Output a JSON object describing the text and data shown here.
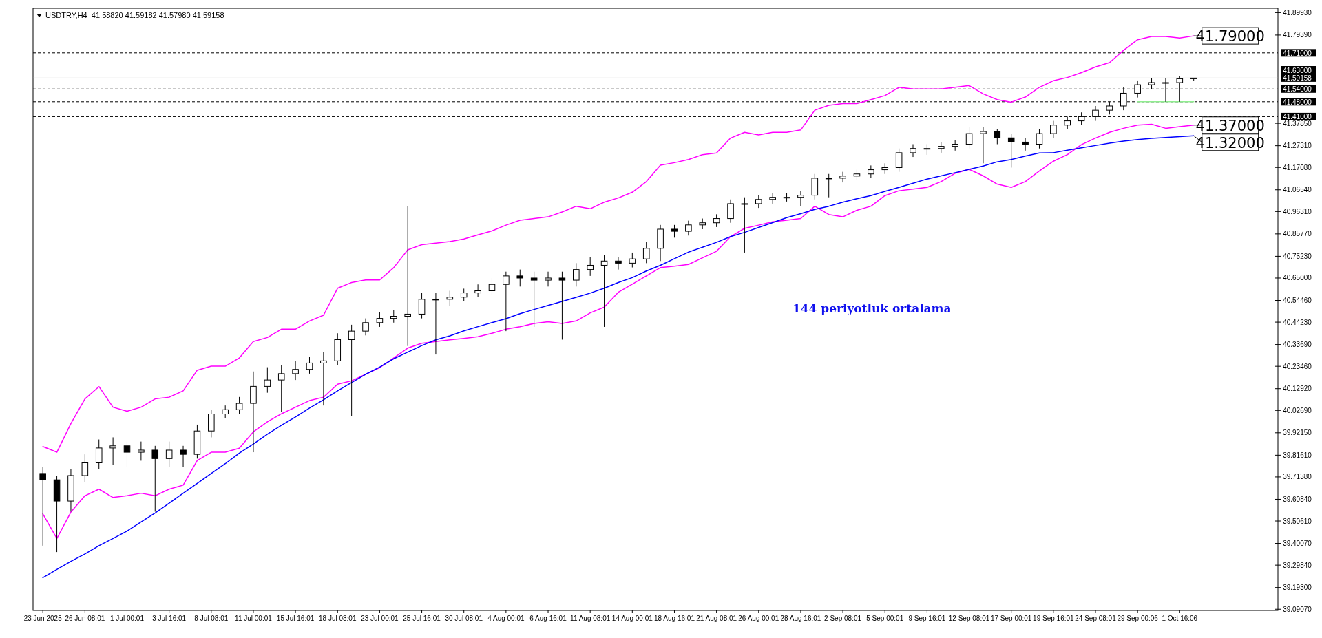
{
  "chart_data": {
    "type": "candlestick",
    "title": "USDTRY,H4  41.58820 41.59182 41.57980 41.59158",
    "categories": [
      "23 Jun 2025",
      null,
      null,
      "26 Jun 08:01",
      null,
      null,
      "1 Jul 00:01",
      null,
      null,
      "3 Jul 16:01",
      null,
      null,
      "8 Jul 08:01",
      null,
      null,
      "11 Jul 00:01",
      null,
      null,
      "15 Jul 16:01",
      null,
      null,
      "18 Jul 08:01",
      null,
      null,
      "23 Jul 00:01",
      null,
      null,
      "25 Jul 16:01",
      null,
      null,
      "30 Jul 08:01",
      null,
      null,
      "4 Aug 00:01",
      null,
      null,
      "6 Aug 16:01",
      null,
      null,
      "11 Aug 08:01",
      null,
      null,
      "14 Aug 00:01",
      null,
      null,
      "18 Aug 16:01",
      null,
      null,
      "21 Aug 08:01",
      null,
      null,
      "26 Aug 00:01",
      null,
      null,
      "28 Aug 16:01",
      null,
      null,
      "2 Sep 08:01",
      null,
      null,
      "5 Sep 00:01",
      null,
      null,
      "9 Sep 16:01",
      null,
      null,
      "12 Sep 08:01",
      null,
      null,
      "17 Sep 00:01",
      null,
      null,
      "19 Sep 16:01",
      null,
      null,
      "24 Sep 08:01",
      null,
      null,
      "29 Sep 00:06",
      null,
      null,
      "1 Oct 16:06",
      null
    ],
    "ohlc": [
      [
        39.73,
        39.76,
        39.39,
        39.7
      ],
      [
        39.7,
        39.72,
        39.36,
        39.6
      ],
      [
        39.6,
        39.75,
        39.55,
        39.72
      ],
      [
        39.72,
        39.82,
        39.69,
        39.78
      ],
      [
        39.78,
        39.89,
        39.75,
        39.85
      ],
      [
        39.85,
        39.9,
        39.77,
        39.86
      ],
      [
        39.86,
        39.88,
        39.76,
        39.83
      ],
      [
        39.83,
        39.88,
        39.79,
        39.84
      ],
      [
        39.84,
        39.86,
        39.55,
        39.8
      ],
      [
        39.8,
        39.88,
        39.76,
        39.84
      ],
      [
        39.84,
        39.86,
        39.76,
        39.82
      ],
      [
        39.82,
        39.96,
        39.8,
        39.93
      ],
      [
        39.93,
        40.03,
        39.9,
        40.01
      ],
      [
        40.01,
        40.05,
        39.99,
        40.03
      ],
      [
        40.03,
        40.09,
        40.01,
        40.06
      ],
      [
        40.06,
        40.21,
        39.83,
        40.14
      ],
      [
        40.14,
        40.23,
        40.11,
        40.17
      ],
      [
        40.17,
        40.24,
        40.02,
        40.2
      ],
      [
        40.2,
        40.26,
        40.17,
        40.22
      ],
      [
        40.22,
        40.28,
        40.2,
        40.25
      ],
      [
        40.25,
        40.3,
        40.05,
        40.26
      ],
      [
        40.26,
        40.39,
        40.24,
        40.36
      ],
      [
        40.36,
        40.43,
        40.0,
        40.4
      ],
      [
        40.4,
        40.46,
        40.38,
        40.44
      ],
      [
        40.44,
        40.49,
        40.42,
        40.46
      ],
      [
        40.46,
        40.5,
        40.44,
        40.47
      ],
      [
        40.47,
        40.99,
        40.33,
        40.48
      ],
      [
        40.48,
        40.58,
        40.46,
        40.55
      ],
      [
        40.55,
        40.58,
        40.29,
        40.55
      ],
      [
        40.55,
        40.59,
        40.52,
        40.56
      ],
      [
        40.56,
        40.6,
        40.54,
        40.58
      ],
      [
        40.58,
        40.62,
        40.56,
        40.59
      ],
      [
        40.59,
        40.65,
        40.57,
        40.62
      ],
      [
        40.62,
        40.68,
        40.4,
        40.66
      ],
      [
        40.66,
        40.69,
        40.61,
        40.65
      ],
      [
        40.65,
        40.68,
        40.42,
        40.64
      ],
      [
        40.64,
        40.68,
        40.61,
        40.65
      ],
      [
        40.65,
        40.68,
        40.36,
        40.64
      ],
      [
        40.64,
        40.72,
        40.61,
        40.69
      ],
      [
        40.69,
        40.75,
        40.66,
        40.71
      ],
      [
        40.71,
        40.76,
        40.42,
        40.73
      ],
      [
        40.73,
        40.75,
        40.69,
        40.72
      ],
      [
        40.72,
        40.77,
        40.7,
        40.74
      ],
      [
        40.74,
        40.82,
        40.72,
        40.79
      ],
      [
        40.79,
        40.9,
        40.73,
        40.88
      ],
      [
        40.88,
        40.9,
        40.84,
        40.87
      ],
      [
        40.87,
        40.92,
        40.85,
        40.9
      ],
      [
        40.9,
        40.93,
        40.88,
        40.91
      ],
      [
        40.91,
        40.95,
        40.89,
        40.93
      ],
      [
        40.93,
        41.02,
        40.91,
        41.0
      ],
      [
        41.0,
        41.03,
        40.77,
        41.0
      ],
      [
        41.0,
        41.04,
        40.98,
        41.02
      ],
      [
        41.02,
        41.05,
        41.0,
        41.03
      ],
      [
        41.03,
        41.05,
        41.01,
        41.03
      ],
      [
        41.03,
        41.06,
        40.99,
        41.04
      ],
      [
        41.04,
        41.14,
        41.02,
        41.12
      ],
      [
        41.12,
        41.14,
        41.03,
        41.12
      ],
      [
        41.12,
        41.15,
        41.1,
        41.13
      ],
      [
        41.13,
        41.16,
        41.11,
        41.14
      ],
      [
        41.14,
        41.18,
        41.12,
        41.16
      ],
      [
        41.16,
        41.19,
        41.14,
        41.17
      ],
      [
        41.17,
        41.26,
        41.15,
        41.24
      ],
      [
        41.24,
        41.28,
        41.22,
        41.26
      ],
      [
        41.26,
        41.28,
        41.23,
        41.26
      ],
      [
        41.26,
        41.29,
        41.24,
        41.27
      ],
      [
        41.27,
        41.3,
        41.25,
        41.28
      ],
      [
        41.28,
        41.36,
        41.26,
        41.33
      ],
      [
        41.33,
        41.36,
        41.19,
        41.34
      ],
      [
        41.34,
        41.35,
        41.28,
        41.31
      ],
      [
        41.31,
        41.33,
        41.17,
        41.29
      ],
      [
        41.29,
        41.31,
        41.25,
        41.28
      ],
      [
        41.28,
        41.35,
        41.26,
        41.33
      ],
      [
        41.33,
        41.39,
        41.31,
        41.37
      ],
      [
        41.37,
        41.41,
        41.35,
        41.39
      ],
      [
        41.39,
        41.43,
        41.37,
        41.41
      ],
      [
        41.41,
        41.46,
        41.39,
        41.44
      ],
      [
        41.44,
        41.48,
        41.42,
        41.46
      ],
      [
        41.46,
        41.55,
        41.44,
        41.52
      ],
      [
        41.52,
        41.58,
        41.5,
        41.56
      ],
      [
        41.56,
        41.59,
        41.54,
        41.57
      ],
      [
        41.57,
        41.59,
        41.48,
        41.57
      ],
      [
        41.57,
        41.6,
        41.48,
        41.5882
      ],
      [
        41.5882,
        41.59182,
        41.5798,
        41.59158
      ]
    ],
    "series": [
      {
        "type": "line",
        "color": "#ff00ff",
        "values": [
          39.857,
          39.83,
          39.965,
          40.081,
          40.139,
          40.042,
          40.023,
          40.042,
          40.081,
          40.089,
          40.119,
          40.216,
          40.235,
          40.235,
          40.274,
          40.351,
          40.37,
          40.409,
          40.409,
          40.448,
          40.475,
          40.602,
          40.629,
          40.641,
          40.641,
          40.699,
          40.783,
          40.807,
          40.814,
          40.822,
          40.834,
          40.853,
          40.872,
          40.899,
          40.922,
          40.93,
          40.938,
          40.961,
          40.988,
          40.976,
          41.007,
          41.027,
          41.054,
          41.104,
          41.181,
          41.193,
          41.208,
          41.231,
          41.239,
          41.309,
          41.336,
          41.324,
          41.336,
          41.336,
          41.347,
          41.44,
          41.463,
          41.471,
          41.471,
          41.49,
          41.509,
          41.548,
          41.54,
          41.54,
          41.54,
          41.548,
          41.556,
          41.517,
          41.49,
          41.478,
          41.502,
          41.548,
          41.579,
          41.594,
          41.617,
          41.644,
          41.664,
          41.722,
          41.772,
          41.787,
          41.787,
          41.78,
          41.79
        ]
      },
      {
        "type": "line",
        "color": "#ff00ff",
        "values": [
          39.54,
          39.424,
          39.548,
          39.625,
          39.656,
          39.617,
          39.625,
          39.637,
          39.625,
          39.656,
          39.675,
          39.791,
          39.83,
          39.83,
          39.849,
          39.926,
          39.973,
          40.011,
          40.042,
          40.073,
          40.089,
          40.15,
          40.166,
          40.197,
          40.228,
          40.274,
          40.32,
          40.343,
          40.351,
          40.359,
          40.366,
          40.374,
          40.39,
          40.409,
          40.421,
          40.436,
          40.444,
          40.436,
          40.448,
          40.486,
          40.513,
          40.583,
          40.621,
          40.66,
          40.699,
          40.706,
          40.714,
          40.745,
          40.776,
          40.845,
          40.884,
          40.899,
          40.915,
          40.922,
          40.93,
          40.988,
          40.949,
          40.938,
          40.969,
          40.988,
          41.038,
          41.061,
          41.069,
          41.077,
          41.104,
          41.143,
          41.162,
          41.131,
          41.092,
          41.077,
          41.104,
          41.154,
          41.2,
          41.231,
          41.278,
          41.309,
          41.336,
          41.355,
          41.37,
          41.374,
          41.355,
          41.363,
          41.37
        ]
      },
      {
        "type": "line",
        "color": "#0000ff",
        "values": [
          39.239,
          39.278,
          39.316,
          39.351,
          39.39,
          39.424,
          39.459,
          39.502,
          39.544,
          39.59,
          39.637,
          39.683,
          39.73,
          39.776,
          39.826,
          39.869,
          39.915,
          39.957,
          39.996,
          40.038,
          40.077,
          40.119,
          40.158,
          40.197,
          40.231,
          40.27,
          40.301,
          40.332,
          40.359,
          40.378,
          40.401,
          40.421,
          40.44,
          40.459,
          40.482,
          40.502,
          40.521,
          40.54,
          40.559,
          40.579,
          40.602,
          40.629,
          40.652,
          40.683,
          40.71,
          40.741,
          40.772,
          40.795,
          40.818,
          40.845,
          40.865,
          40.888,
          40.911,
          40.934,
          40.953,
          40.973,
          40.988,
          41.007,
          41.023,
          41.038,
          41.058,
          41.077,
          41.096,
          41.116,
          41.131,
          41.146,
          41.162,
          41.177,
          41.197,
          41.208,
          41.224,
          41.239,
          41.24,
          41.252,
          41.263,
          41.274,
          41.285,
          41.295,
          41.302,
          41.308,
          41.312,
          41.316,
          41.32
        ]
      },
      {
        "type": "line",
        "color": "#90ee90",
        "values": [
          null,
          null,
          null,
          null,
          null,
          null,
          null,
          null,
          null,
          null,
          null,
          null,
          null,
          null,
          null,
          null,
          null,
          null,
          null,
          null,
          null,
          null,
          null,
          null,
          null,
          null,
          null,
          null,
          null,
          null,
          null,
          null,
          null,
          null,
          null,
          null,
          null,
          null,
          null,
          null,
          null,
          null,
          null,
          null,
          null,
          null,
          null,
          null,
          null,
          null,
          null,
          null,
          null,
          null,
          null,
          null,
          null,
          null,
          null,
          null,
          null,
          null,
          null,
          null,
          null,
          null,
          null,
          null,
          null,
          null,
          null,
          null,
          null,
          null,
          null,
          null,
          null,
          null,
          41.48,
          41.48,
          41.48,
          41.48,
          41.48
        ]
      }
    ],
    "ylim": [
      39.085,
      41.92
    ],
    "yticks": [
      {
        "value": 41.8993,
        "label": "41.89930"
      },
      {
        "value": 41.7939,
        "label": "41.79390"
      },
      {
        "value": 41.3785,
        "label": "41.37850"
      },
      {
        "value": 41.2731,
        "label": "41.27310"
      },
      {
        "value": 41.1708,
        "label": "41.17080"
      },
      {
        "value": 41.0654,
        "label": "41.06540"
      },
      {
        "value": 40.9631,
        "label": "40.96310"
      },
      {
        "value": 40.8577,
        "label": "40.85770"
      },
      {
        "value": 40.7523,
        "label": "40.75230"
      },
      {
        "value": 40.65,
        "label": "40.65000"
      },
      {
        "value": 40.5446,
        "label": "40.54460"
      },
      {
        "value": 40.4423,
        "label": "40.44230"
      },
      {
        "value": 40.3369,
        "label": "40.33690"
      },
      {
        "value": 40.2346,
        "label": "40.23460"
      },
      {
        "value": 40.1292,
        "label": "40.12920"
      },
      {
        "value": 40.0269,
        "label": "40.02690"
      },
      {
        "value": 39.9215,
        "label": "39.92150"
      },
      {
        "value": 39.8161,
        "label": "39.81610"
      },
      {
        "value": 39.7138,
        "label": "39.71380"
      },
      {
        "value": 39.6084,
        "label": "39.60840"
      },
      {
        "value": 39.5061,
        "label": "39.50610"
      },
      {
        "value": 39.4007,
        "label": "39.40070"
      },
      {
        "value": 39.2984,
        "label": "39.29840"
      },
      {
        "value": 39.193,
        "label": "39.19300"
      },
      {
        "value": 39.0907,
        "label": "39.09070"
      }
    ],
    "ref_lines": [
      {
        "axis": "y",
        "value": 41.71,
        "label": "41.71000",
        "color": "#000000",
        "line_style": "dashed"
      },
      {
        "axis": "y",
        "value": 41.63,
        "label": "41.63000",
        "color": "#000000",
        "line_style": "dashed"
      },
      {
        "axis": "y",
        "value": 41.59158,
        "label": "41.59158",
        "color": "#c0c0c0",
        "line_style": "solid"
      },
      {
        "axis": "y",
        "value": 41.54,
        "label": "41.54000",
        "color": "#000000",
        "line_style": "dashed"
      },
      {
        "axis": "y",
        "value": 41.48,
        "label": "41.48000",
        "color": "#000000",
        "line_style": "dashed"
      },
      {
        "axis": "y",
        "value": 41.41,
        "label": "41.41000",
        "color": "#000000",
        "line_style": "dashed"
      }
    ],
    "annotations": [
      "41.79000",
      "41.37000",
      "41.32000",
      "144 periyotluk ortalama"
    ]
  }
}
